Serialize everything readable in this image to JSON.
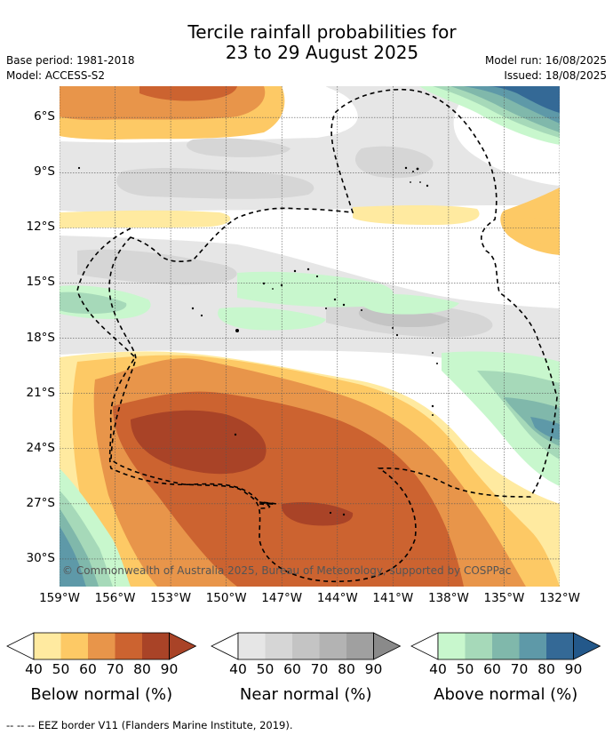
{
  "header": {
    "title_line1": "Tercile rainfall probabilities for",
    "title_line2": "23 to 29 August 2025",
    "base_period": "Base period: 1981-2018",
    "model": "Model: ACCESS-S2",
    "model_run": "Model run: 16/08/2025",
    "issued": "Issued: 18/08/2025"
  },
  "map": {
    "lat_labels": [
      "6°S",
      "9°S",
      "12°S",
      "15°S",
      "18°S",
      "21°S",
      "24°S",
      "27°S",
      "30°S"
    ],
    "lon_labels": [
      "159°W",
      "156°W",
      "153°W",
      "150°W",
      "147°W",
      "144°W",
      "141°W",
      "138°W",
      "135°W",
      "132°W"
    ],
    "lat_values": [
      -6,
      -9,
      -12,
      -15,
      -18,
      -21,
      -24,
      -27,
      -30
    ],
    "lon_values": [
      -159,
      -156,
      -153,
      -150,
      -147,
      -144,
      -141,
      -138,
      -135,
      -132
    ],
    "copyright": "© Commonwealth of Australia 2025, Bureau of Meteorology, supported by COSPPac"
  },
  "colorbars": [
    {
      "title": "Below normal (%)",
      "ticks": [
        "40",
        "50",
        "60",
        "70",
        "80",
        "90"
      ],
      "colors": [
        "#ffeaa0",
        "#fdc965",
        "#e8954a",
        "#cc6330",
        "#a94327",
        "#a94327"
      ]
    },
    {
      "title": "Near normal (%)",
      "ticks": [
        "40",
        "50",
        "60",
        "70",
        "80",
        "90"
      ],
      "colors": [
        "#e6e6e6",
        "#d6d6d6",
        "#c4c4c4",
        "#b3b3b3",
        "#a0a0a0",
        "#8a8a8a"
      ]
    },
    {
      "title": "Above normal (%)",
      "ticks": [
        "40",
        "50",
        "60",
        "70",
        "80",
        "90"
      ],
      "colors": [
        "#c8f7cd",
        "#a6d9b9",
        "#80b8ab",
        "#5e99a8",
        "#346996",
        "#23588a"
      ]
    }
  ],
  "footer": {
    "legend_text": "--  --  -- EEZ border V11 (Flanders Marine Institute, 2019)."
  }
}
